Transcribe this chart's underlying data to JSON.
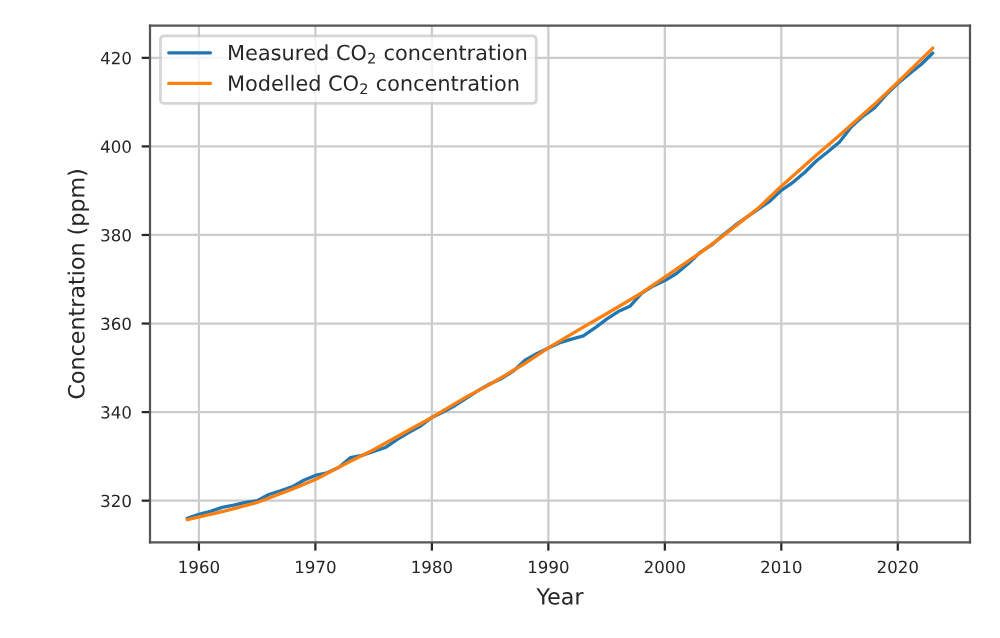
{
  "chart_data": {
    "type": "line",
    "xlabel": "Year",
    "ylabel": "Concentration (ppm)",
    "xlim": [
      1955.8,
      2026.2
    ],
    "xticks": [
      1960,
      1970,
      1980,
      1990,
      2000,
      2010,
      2020
    ],
    "ylim": [
      310.6,
      427.3
    ],
    "yticks": [
      320,
      340,
      360,
      380,
      400,
      420
    ],
    "grid": true,
    "legend": "top left",
    "line_style": "solid",
    "marker": "none",
    "series": [
      {
        "name": "Measured CO$_{2}$ concentration",
        "color": "#1f77b4",
        "x": [
          1959,
          1960,
          1961,
          1962,
          1963,
          1964,
          1965,
          1966,
          1967,
          1968,
          1969,
          1970,
          1971,
          1972,
          1973,
          1974,
          1975,
          1976,
          1977,
          1978,
          1979,
          1980,
          1981,
          1982,
          1983,
          1984,
          1985,
          1986,
          1987,
          1988,
          1989,
          1990,
          1991,
          1992,
          1993,
          1994,
          1995,
          1996,
          1997,
          1998,
          1999,
          2000,
          2001,
          2002,
          2003,
          2004,
          2005,
          2006,
          2007,
          2008,
          2009,
          2010,
          2011,
          2012,
          2013,
          2014,
          2015,
          2016,
          2017,
          2018,
          2019,
          2020,
          2021,
          2022,
          2023
        ],
        "values": [
          316.0,
          316.9,
          317.6,
          318.5,
          319.0,
          319.6,
          320.0,
          321.4,
          322.2,
          323.1,
          324.6,
          325.7,
          326.3,
          327.5,
          329.7,
          330.2,
          331.1,
          332.0,
          333.8,
          335.4,
          336.8,
          338.8,
          340.1,
          341.5,
          343.2,
          344.9,
          346.4,
          347.6,
          349.3,
          351.7,
          353.2,
          354.5,
          355.7,
          356.5,
          357.2,
          359.0,
          361.0,
          362.7,
          363.9,
          366.8,
          368.5,
          369.7,
          371.3,
          373.5,
          376.0,
          377.7,
          380.0,
          382.1,
          384.0,
          385.8,
          387.6,
          390.1,
          391.9,
          394.1,
          396.7,
          398.8,
          401.0,
          404.4,
          406.8,
          408.7,
          411.7,
          414.2,
          416.4,
          418.5,
          421.1
        ]
      },
      {
        "name": "Modelled CO$_{2}$ concentration",
        "color": "#ff7f0e",
        "x": [
          1959,
          1962,
          1965,
          1968,
          1970,
          1973,
          1975,
          1978,
          1980,
          1983,
          1985,
          1988,
          1990,
          1993,
          1995,
          1998,
          2000,
          2003,
          2005,
          2008,
          2010,
          2013,
          2015,
          2018,
          2020,
          2023
        ],
        "values": [
          315.7,
          317.5,
          319.6,
          322.6,
          324.8,
          328.9,
          331.5,
          335.9,
          338.8,
          343.5,
          346.3,
          351.0,
          354.5,
          359.2,
          362.2,
          366.9,
          370.5,
          375.9,
          379.8,
          386.0,
          391.0,
          398.0,
          402.5,
          409.5,
          414.5,
          422.2
        ]
      }
    ]
  }
}
